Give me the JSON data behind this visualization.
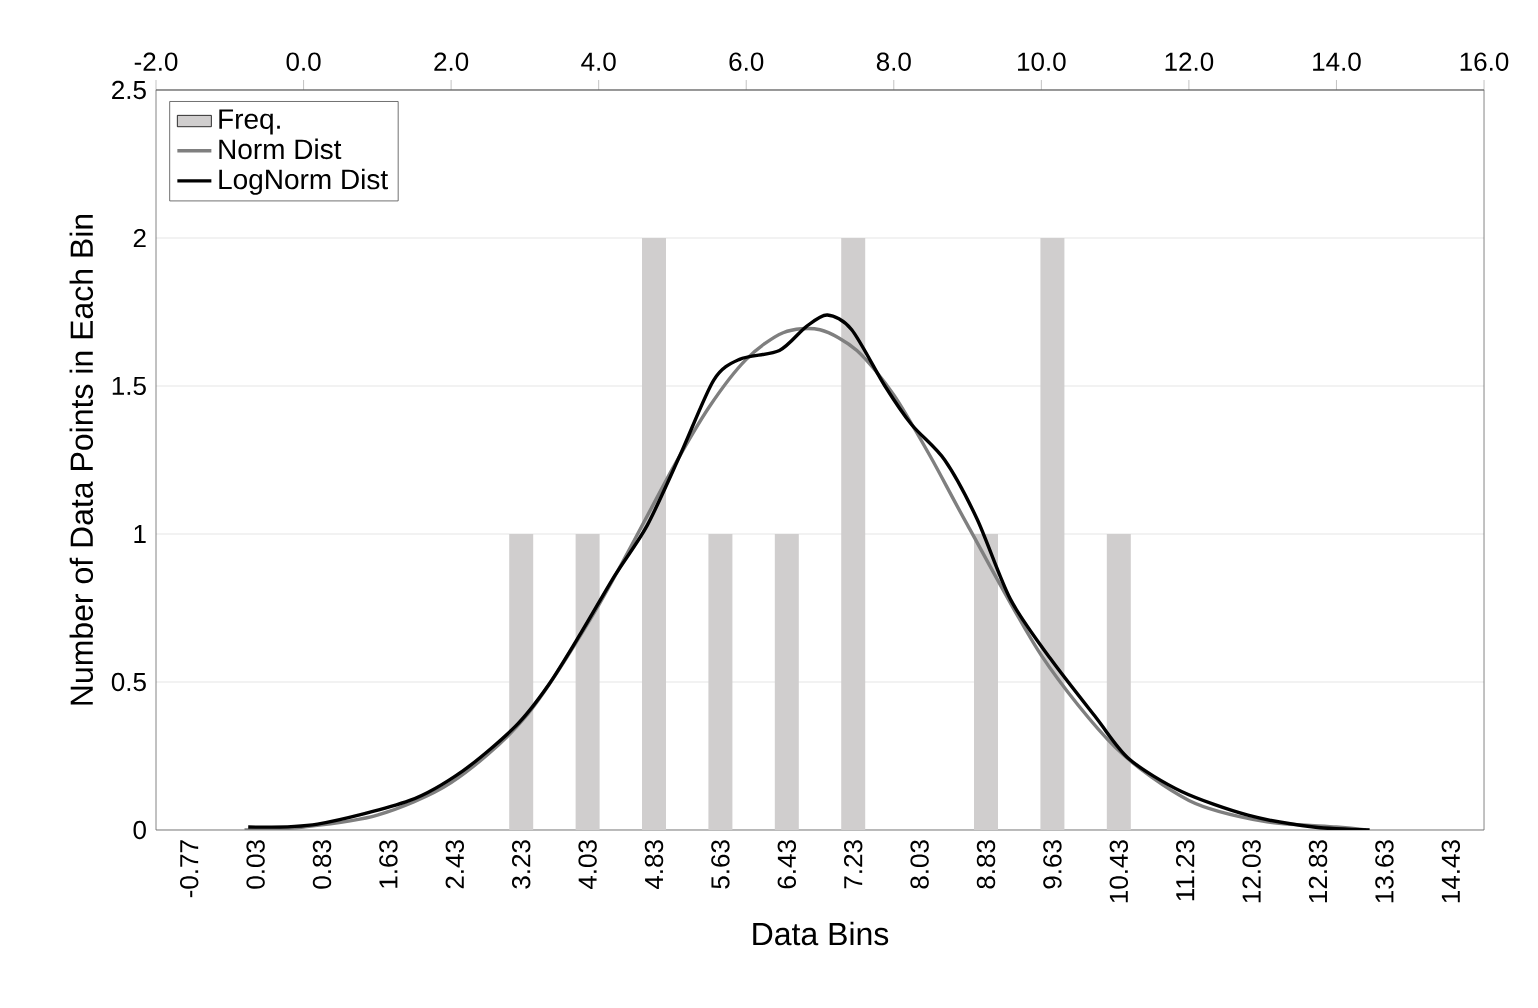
{
  "chart_data": {
    "type": "bar",
    "xlabel": "Data Bins",
    "ylabel": "Number of Data Points in Each Bin",
    "categories": [
      "-0.77",
      "0.03",
      "0.83",
      "1.63",
      "2.43",
      "3.23",
      "4.03",
      "4.83",
      "5.63",
      "6.43",
      "7.23",
      "8.03",
      "8.83",
      "9.63",
      "10.43",
      "11.23",
      "12.03",
      "12.83",
      "13.63",
      "14.43"
    ],
    "series": [
      {
        "name": "Freq.",
        "color": "#d0cece",
        "values": [
          0,
          0,
          0,
          0,
          0,
          1,
          1,
          2,
          1,
          1,
          2,
          0,
          1,
          2,
          1,
          0,
          0,
          0,
          0,
          0
        ]
      },
      {
        "name": "Norm Dist",
        "type": "line",
        "axis": "x2",
        "color": "#7f7f7f",
        "x": [
          -0.8,
          0,
          1,
          2,
          3,
          4,
          5,
          5.5,
          6,
          6.5,
          7,
          7.5,
          8,
          8.5,
          9,
          10,
          11,
          12,
          13,
          14,
          14.4
        ],
        "values": [
          0.0,
          0.01,
          0.05,
          0.16,
          0.38,
          0.76,
          1.22,
          1.43,
          1.59,
          1.68,
          1.69,
          1.62,
          1.47,
          1.26,
          1.03,
          0.59,
          0.28,
          0.1,
          0.03,
          0.01,
          0.0
        ]
      },
      {
        "name": "LogNorm Dist",
        "type": "line",
        "axis": "x2",
        "color": "#000000",
        "x": [
          -0.75,
          0.19,
          1.44,
          2.16,
          2.87,
          3.32,
          3.77,
          4.22,
          4.66,
          5.11,
          5.56,
          5.91,
          6.45,
          6.81,
          7.1,
          7.43,
          7.88,
          8.24,
          8.69,
          9.13,
          9.58,
          10.12,
          10.74,
          11.19,
          11.9,
          12.8,
          13.69,
          14.45
        ],
        "values": [
          0.01,
          0.02,
          0.1,
          0.2,
          0.35,
          0.49,
          0.67,
          0.86,
          1.03,
          1.27,
          1.52,
          1.59,
          1.62,
          1.7,
          1.74,
          1.69,
          1.5,
          1.37,
          1.25,
          1.05,
          0.78,
          0.58,
          0.38,
          0.24,
          0.13,
          0.05,
          0.01,
          0.0
        ]
      }
    ],
    "ylim": [
      0,
      2.5
    ],
    "yticks": [
      0,
      0.5,
      1,
      1.5,
      2,
      2.5
    ],
    "x2lim": [
      -2,
      16
    ],
    "x2ticks": [
      {
        "value": -2,
        "label": "-2.0"
      },
      {
        "value": 0,
        "label": "0.0"
      },
      {
        "value": 2,
        "label": "2.0"
      },
      {
        "value": 4,
        "label": "4.0"
      },
      {
        "value": 6,
        "label": "6.0"
      },
      {
        "value": 8,
        "label": "8.0"
      },
      {
        "value": 10,
        "label": "10.0"
      },
      {
        "value": 12,
        "label": "12.0"
      },
      {
        "value": 14,
        "label": "14.0"
      },
      {
        "value": 16,
        "label": "16.0"
      }
    ],
    "grid": "y",
    "legend": "top left"
  }
}
